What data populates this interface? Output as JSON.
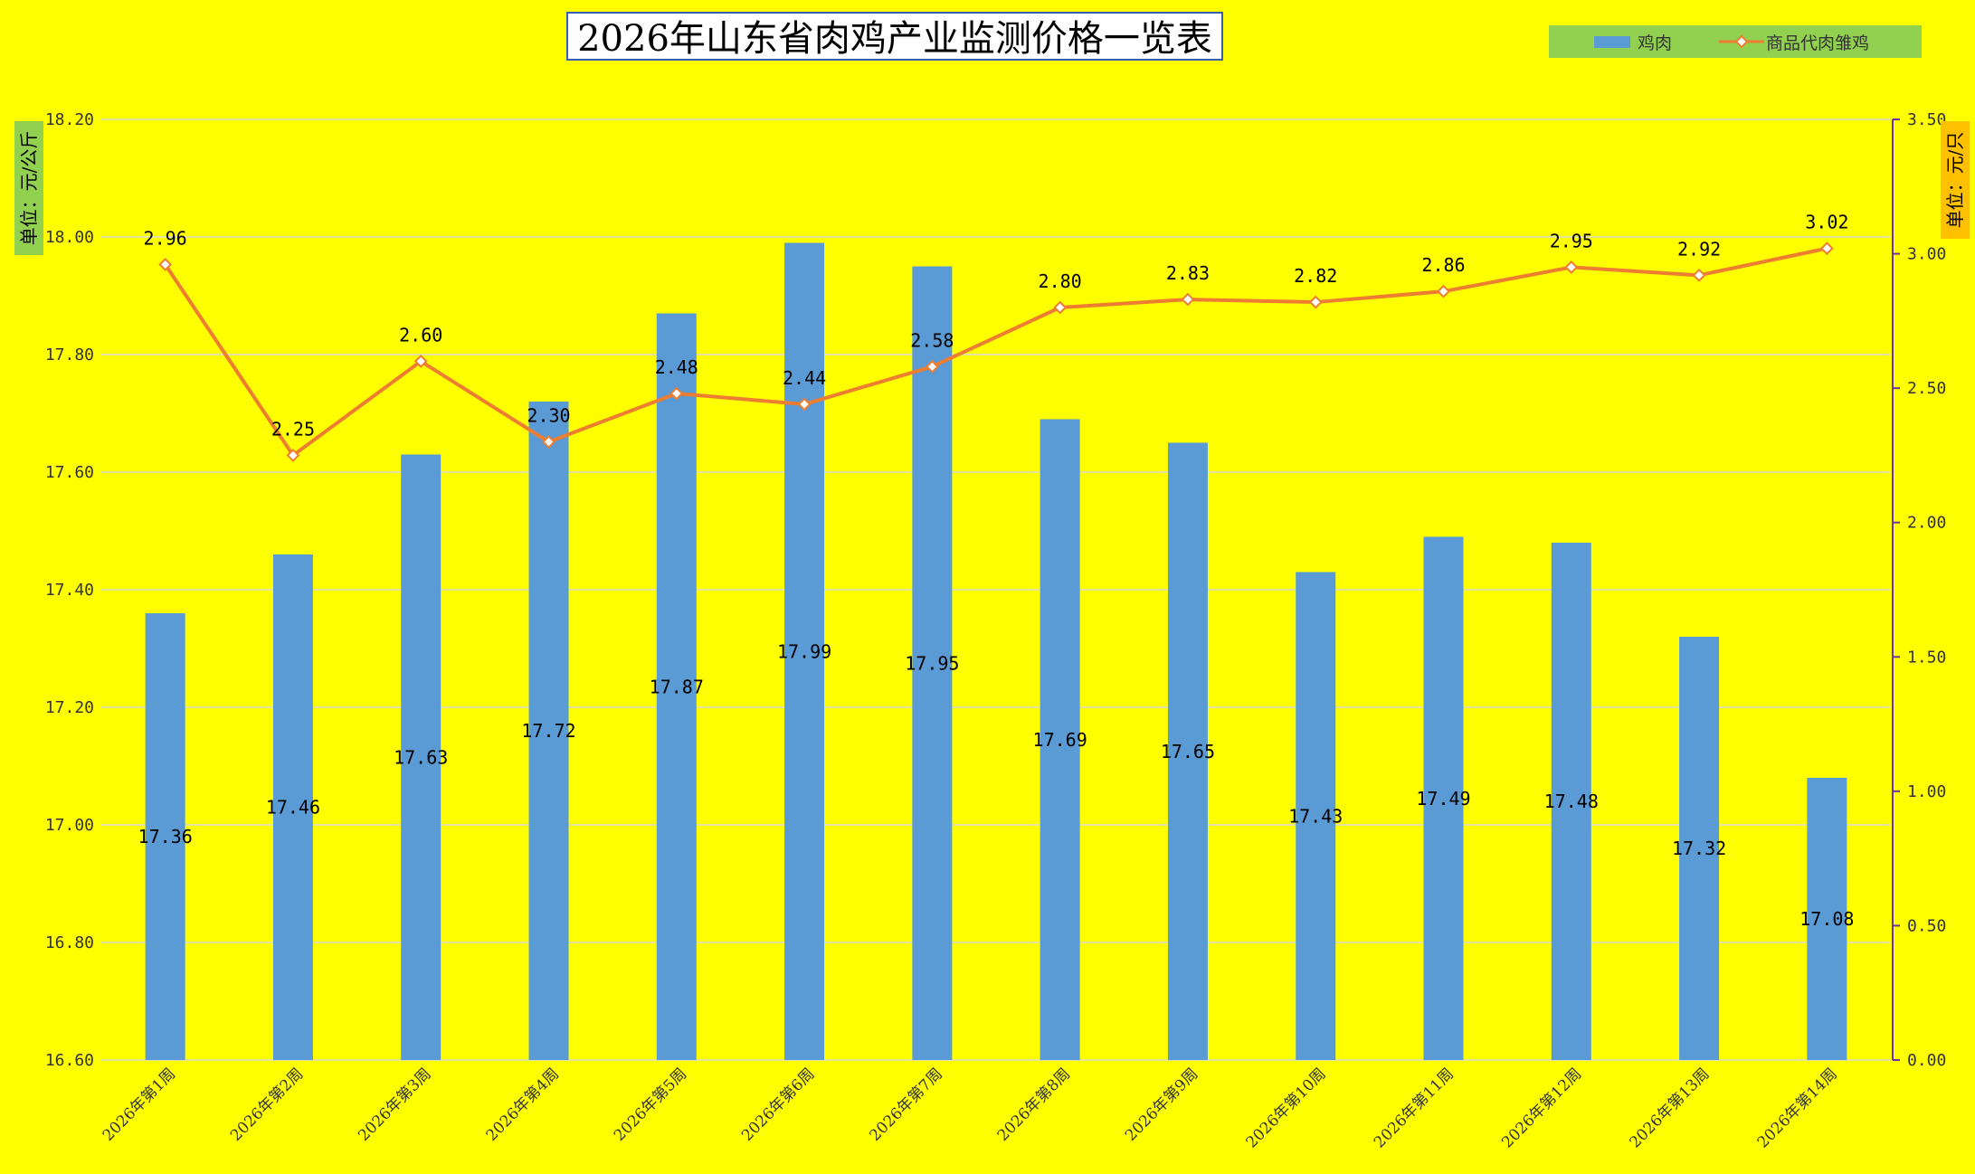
{
  "chart_data": {
    "type": "bar",
    "title": "2026年山东省肉鸡产业监测价格一览表",
    "categories": [
      "2026年第1周",
      "2026年第2周",
      "2026年第3周",
      "2026年第4周",
      "2026年第5周",
      "2026年第6周",
      "2026年第7周",
      "2026年第8周",
      "2026年第9周",
      "2026年第10周",
      "2026年第11周",
      "2026年第12周",
      "2026年第13周",
      "2026年第14周"
    ],
    "series": [
      {
        "name": "鸡肉",
        "type": "bar",
        "axis": "left",
        "color": "#5b9bd5",
        "values": [
          17.36,
          17.46,
          17.63,
          17.72,
          17.87,
          17.99,
          17.95,
          17.69,
          17.65,
          17.43,
          17.49,
          17.48,
          17.32,
          17.08
        ]
      },
      {
        "name": "商品代肉雏鸡",
        "type": "line",
        "axis": "right",
        "color": "#ed7d31",
        "values": [
          2.96,
          2.25,
          2.6,
          2.3,
          2.48,
          2.44,
          2.58,
          2.8,
          2.83,
          2.82,
          2.86,
          2.95,
          2.92,
          3.02
        ]
      }
    ],
    "ylabel_left": "单位：元/公斤",
    "ylabel_right": "单位：元/只",
    "ylim_left": [
      16.6,
      18.2
    ],
    "yticks_left": [
      "18.20",
      "18.00",
      "17.80",
      "17.60",
      "17.40",
      "17.20",
      "17.00",
      "16.80",
      "16.60"
    ],
    "ylim_right": [
      0,
      3.5
    ],
    "yticks_right": [
      "3.50",
      "3.00",
      "2.50",
      "2.00",
      "1.50",
      "1.00",
      "0.50",
      "0.00"
    ],
    "grid": true,
    "legend_position": "top-right",
    "colors": {
      "background": "#ffff00",
      "legend_bg": "#92d050",
      "left_unit_bg": "#92d050",
      "right_unit_bg": "#ffc000"
    }
  }
}
